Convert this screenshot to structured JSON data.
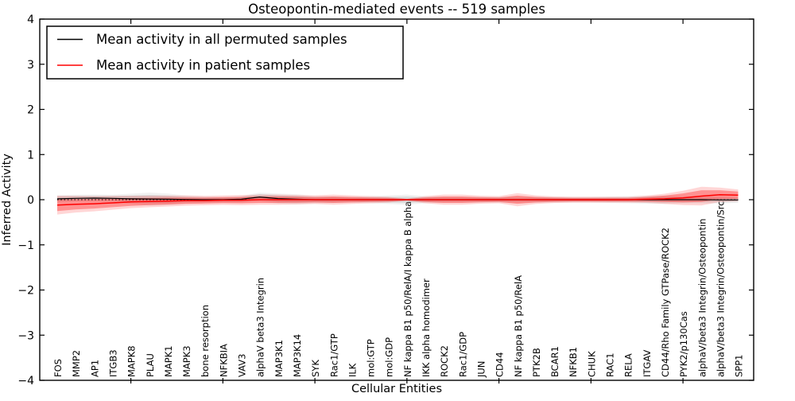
{
  "chart_data": {
    "type": "line",
    "title": "Osteopontin-mediated events -- 519 samples",
    "xlabel": "Cellular Entities",
    "ylabel": "Inferred Activity",
    "ylim": [
      -4,
      4
    ],
    "yticks": [
      4,
      3,
      2,
      1,
      0,
      -1,
      -2,
      -3,
      -4
    ],
    "ytick_labels": [
      "4",
      "3",
      "2",
      "1",
      "0",
      "−1",
      "−2",
      "−3",
      "−4"
    ],
    "grid": false,
    "zero_line": true,
    "legend_position": "upper left",
    "band_outer_scale": 1.6,
    "categories": [
      "FOS",
      "MMP2",
      "AP1",
      "ITGB3",
      "MAPK8",
      "PLAU",
      "MAPK1",
      "MAPK3",
      "bone resorption",
      "NFKBIA",
      "VAV3",
      "alphaV beta3 Integrin",
      "MAP3K1",
      "MAP3K14",
      "SYK",
      "Rac1/GTP",
      "ILK",
      "mol:GTP",
      "mol:GDP",
      "NF kappa B1 p50/RelA/I kappa B alpha",
      "IKK alpha homodimer",
      "ROCK2",
      "Rac1/GDP",
      "JUN",
      "CD44",
      "NF kappa B1 p50/RelA",
      "PTK2B",
      "BCAR1",
      "NFKB1",
      "CHUK",
      "RAC1",
      "RELA",
      "ITGAV",
      "CD44/Rho Family GTPase/ROCK2",
      "PYK2/p130Cas",
      "alphaV/beta3 Integrin/Osteopontin",
      "alphaV/beta3 Integrin/Osteopontin/Src",
      "SPP1"
    ],
    "legend": [
      {
        "label": "Mean activity in all permuted samples",
        "color": "#000000"
      },
      {
        "label": "Mean activity in patient samples",
        "color": "#ff0000"
      }
    ],
    "series": [
      {
        "name": "Mean activity in all permuted samples",
        "color": "#000000",
        "band_color": "#aaaaaa",
        "values": [
          0.02,
          0.03,
          0.035,
          0.03,
          0.02,
          0.015,
          0.01,
          0.005,
          0,
          0,
          0.01,
          0.06,
          0.025,
          0.01,
          0,
          0,
          0,
          0,
          0,
          0,
          0,
          0,
          0,
          0,
          0,
          0,
          0,
          0,
          0,
          0,
          0,
          0,
          0,
          0,
          0,
          0,
          -0.005,
          -0.005
        ],
        "band": [
          0.05,
          0.05,
          0.05,
          0.05,
          0.07,
          0.09,
          0.08,
          0.055,
          0.045,
          0.04,
          0.045,
          0.06,
          0.07,
          0.07,
          0.05,
          0.045,
          0.04,
          0.05,
          0.06,
          0.07,
          0.05,
          0.04,
          0.04,
          0.04,
          0.04,
          0.04,
          0.04,
          0.04,
          0.04,
          0.04,
          0.045,
          0.05,
          0.055,
          0.06,
          0.05,
          0.05,
          0.05,
          0.04
        ]
      },
      {
        "name": "Mean activity in patient samples",
        "color": "#ff0000",
        "band_color": "#ff0000",
        "values": [
          -0.12,
          -0.1,
          -0.09,
          -0.07,
          -0.05,
          -0.04,
          -0.03,
          -0.02,
          -0.02,
          -0.01,
          -0.01,
          0,
          0,
          0,
          0,
          0,
          0,
          0,
          0,
          0,
          0,
          0,
          0,
          0,
          0,
          0,
          0,
          0,
          0,
          0,
          0,
          0,
          0.01,
          0.02,
          0.04,
          0.08,
          0.11,
          0.1
        ],
        "band": [
          0.13,
          0.115,
          0.105,
          0.095,
          0.085,
          0.08,
          0.075,
          0.07,
          0.065,
          0.065,
          0.07,
          0.07,
          0.07,
          0.065,
          0.06,
          0.07,
          0.06,
          0.05,
          0.04,
          0.015,
          0.05,
          0.07,
          0.07,
          0.055,
          0.05,
          0.09,
          0.06,
          0.045,
          0.04,
          0.04,
          0.04,
          0.04,
          0.05,
          0.07,
          0.1,
          0.13,
          0.1,
          0.08
        ]
      }
    ]
  }
}
